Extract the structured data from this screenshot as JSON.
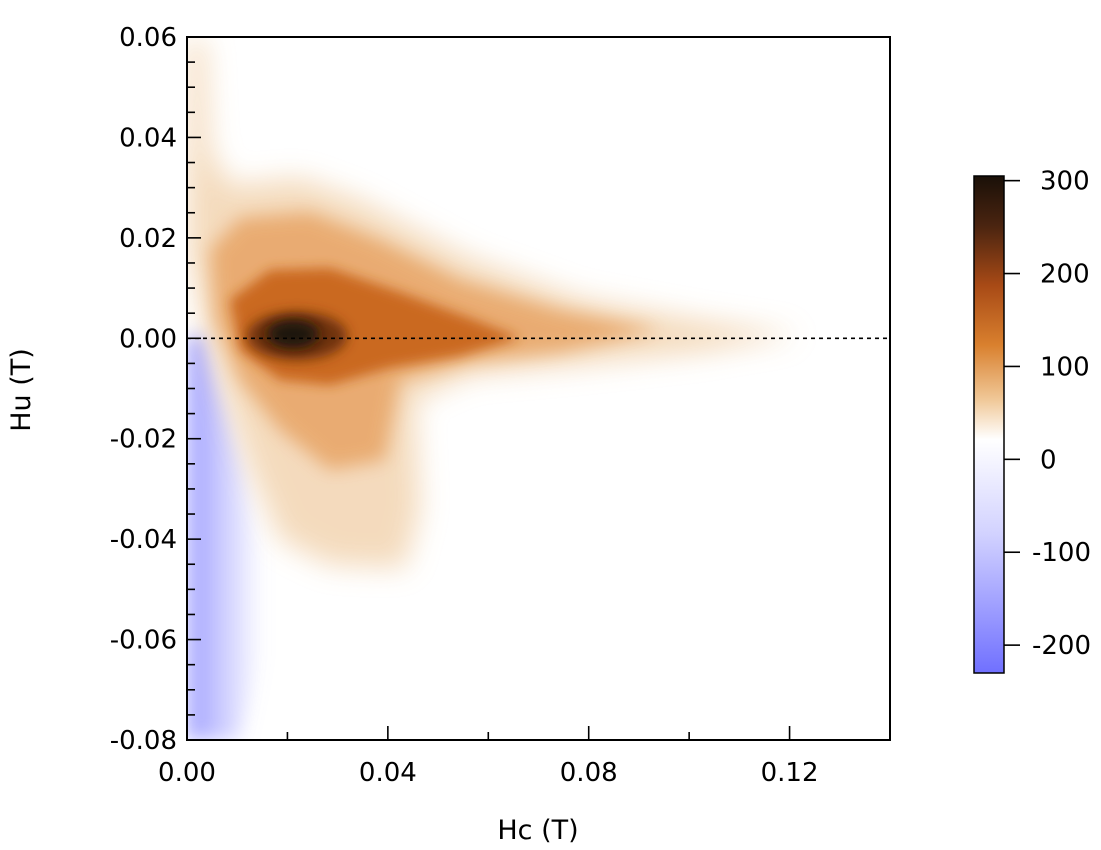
{
  "chart_data": {
    "type": "heatmap",
    "title": "",
    "xlabel": "Hc (T)",
    "ylabel": "Hu (T)",
    "xlim": [
      0.0,
      0.14
    ],
    "ylim": [
      -0.08,
      0.06
    ],
    "x_ticks": [
      "0.00",
      "0.04",
      "0.08",
      "0.12"
    ],
    "x_tick_values": [
      0.0,
      0.04,
      0.08,
      0.12
    ],
    "x_minor_ticks": [
      0.02,
      0.06,
      0.1
    ],
    "y_ticks": [
      "0.06",
      "0.04",
      "0.02",
      "0.00",
      "-0.02",
      "-0.04",
      "-0.06",
      "-0.08"
    ],
    "y_tick_values": [
      0.06,
      0.04,
      0.02,
      0.0,
      -0.02,
      -0.04,
      -0.06,
      -0.08
    ],
    "reference_line": {
      "y": 0.0,
      "style": "dotted"
    },
    "peak": {
      "hc": 0.022,
      "hu": 0.0,
      "value": 300
    },
    "colorbar": {
      "range": [
        -230,
        305
      ],
      "ticks": [
        "300",
        "200",
        "100",
        "0",
        "-100",
        "-200"
      ],
      "tick_values": [
        300,
        200,
        100,
        0,
        -100,
        -200
      ],
      "colors": {
        "min": "#7070ff",
        "zero": "#ffffff",
        "mid": "#c4601c",
        "max": "#1a1008"
      }
    },
    "grid": false
  }
}
